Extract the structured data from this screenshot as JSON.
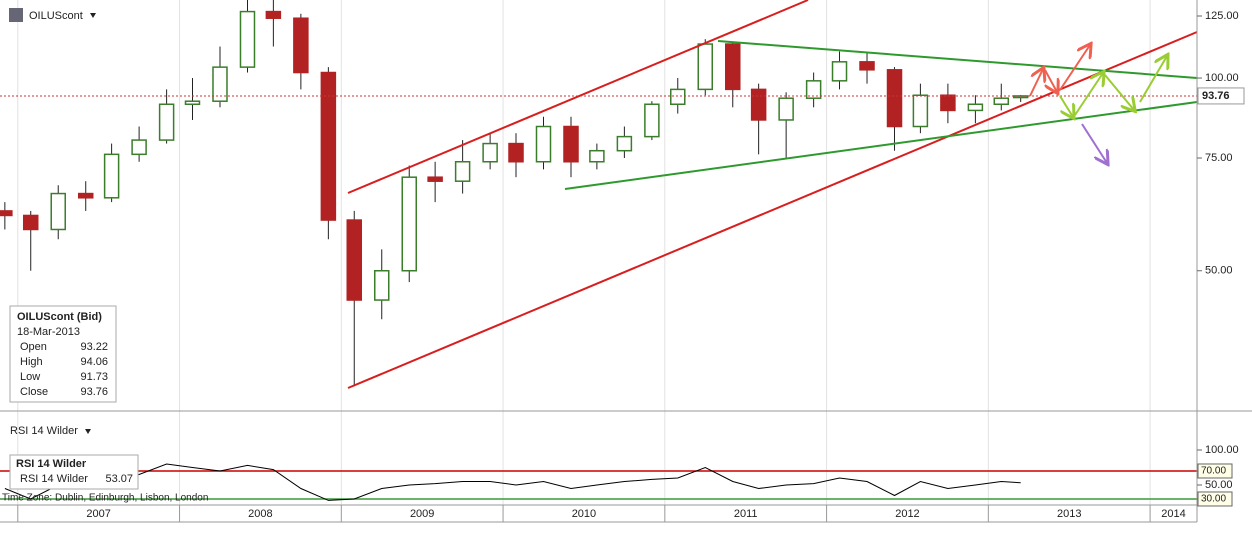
{
  "chart_data": [
    {
      "type": "candlestick",
      "title": "OILUScont",
      "x": [
        2006.92,
        2007.08,
        2007.25,
        2007.42,
        2007.58,
        2007.75,
        2007.92,
        2008.08,
        2008.25,
        2008.42,
        2008.58,
        2008.75,
        2008.92,
        2009.08,
        2009.25,
        2009.42,
        2009.58,
        2009.75,
        2009.92,
        2010.08,
        2010.25,
        2010.42,
        2010.58,
        2010.75,
        2010.92,
        2011.08,
        2011.25,
        2011.42,
        2011.58,
        2011.75,
        2011.92,
        2012.08,
        2012.25,
        2012.42,
        2012.58,
        2012.75,
        2012.92,
        2013.08,
        2013.2
      ],
      "open": [
        62,
        61,
        58,
        66,
        65,
        76,
        80,
        91,
        92,
        104,
        127,
        124,
        102,
        60,
        45,
        50,
        70,
        69,
        74,
        79,
        74,
        84,
        74,
        77,
        81,
        91,
        96,
        113,
        96,
        86,
        93,
        99,
        106,
        103,
        84,
        94,
        89,
        91,
        93.22
      ],
      "high": [
        64,
        62,
        68,
        69,
        79,
        84,
        96,
        100,
        112,
        135,
        147,
        126,
        104,
        62,
        54,
        73,
        74,
        80,
        82,
        82,
        87,
        87,
        79,
        84,
        92,
        100,
        115,
        114,
        98,
        95,
        102,
        110,
        110,
        104,
        98,
        98,
        94,
        98,
        94.06
      ],
      "low": [
        58,
        50,
        56,
        62,
        64,
        74,
        79,
        86,
        90,
        102,
        112,
        96,
        56,
        33,
        42,
        48,
        64,
        66,
        72,
        70,
        72,
        70,
        72,
        75,
        80,
        88,
        94,
        90,
        76,
        75,
        90,
        96,
        98,
        77,
        82,
        85,
        85,
        89,
        91.73
      ],
      "close": [
        61,
        58,
        66,
        65,
        76,
        80,
        91,
        92,
        104,
        127,
        124,
        102,
        60,
        45,
        50,
        70,
        69,
        74,
        79,
        74,
        84,
        74,
        77,
        81,
        91,
        96,
        113,
        96,
        86,
        93,
        99,
        106,
        103,
        84,
        94,
        89,
        91,
        93,
        93.76
      ],
      "up_color": "#3a7d2a",
      "down_color": "#b22222",
      "log_scale": true,
      "ylim": [
        30.3,
        132.4
      ],
      "yticks": [
        {
          "value": 125,
          "label": "125.00"
        },
        {
          "value": 100,
          "label": "100.00"
        },
        {
          "value": 75,
          "label": "75.00"
        },
        {
          "value": 50,
          "label": "50.00"
        }
      ],
      "xlim": [
        2006.89,
        2014.29
      ],
      "xticks": [
        2007,
        2008,
        2009,
        2010,
        2011,
        2012,
        2013,
        2014
      ],
      "grid": true
    },
    {
      "type": "line",
      "title": "RSI 14 Wilder",
      "x": [
        2006.92,
        2007.08,
        2007.25,
        2007.42,
        2007.58,
        2007.75,
        2007.92,
        2008.08,
        2008.25,
        2008.42,
        2008.58,
        2008.75,
        2008.92,
        2009.08,
        2009.25,
        2009.42,
        2009.58,
        2009.75,
        2009.92,
        2010.08,
        2010.25,
        2010.42,
        2010.58,
        2010.75,
        2010.92,
        2011.08,
        2011.25,
        2011.42,
        2011.58,
        2011.75,
        2011.92,
        2012.08,
        2012.25,
        2012.42,
        2012.58,
        2012.75,
        2012.92,
        2013.08,
        2013.2
      ],
      "series": [
        {
          "name": "RSI 14 Wilder",
          "color": "#000000",
          "values": [
            45,
            30,
            50,
            55,
            60,
            65,
            80,
            75,
            70,
            78,
            72,
            45,
            28,
            30,
            45,
            50,
            52,
            55,
            55,
            50,
            55,
            45,
            50,
            55,
            58,
            60,
            75,
            55,
            45,
            50,
            52,
            60,
            55,
            35,
            55,
            45,
            50,
            55,
            53.07
          ]
        }
      ],
      "ylim": [
        21.4,
        154.3
      ],
      "yticks": [
        {
          "value": 100,
          "label": "100.00"
        },
        {
          "value": 70,
          "label": "70.00"
        },
        {
          "value": 50,
          "label": "50.00"
        },
        {
          "value": 30,
          "label": "30.00"
        }
      ],
      "levels": [
        {
          "value": 70,
          "label": "70.00",
          "color": "#cc0000"
        },
        {
          "value": 30,
          "label": "30.00",
          "color": "#3a9a3a"
        }
      ]
    }
  ],
  "info_box": {
    "title": "OILUScont (Bid)",
    "date": "18-Mar-2013",
    "labels": [
      "Open",
      "High",
      "Low",
      "Close"
    ]
  },
  "time_zone": "Time Zone: Dublin, Edinburgh, Lisbon, London"
}
